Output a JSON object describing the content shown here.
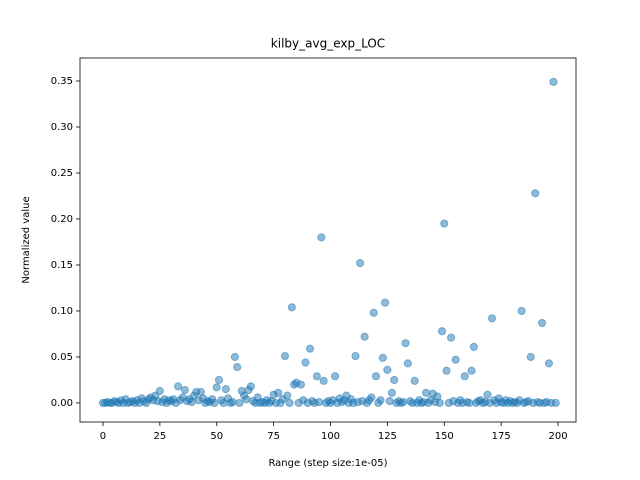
{
  "chart_data": {
    "type": "scatter",
    "title": "kilby_avg_exp_LOC",
    "xlabel": "Range (step size:1e-05)",
    "ylabel": "Normalized value",
    "color": "#1f77b4",
    "alpha": 0.5,
    "xlim": [
      -10.1,
      207.9
    ],
    "ylim": [
      -0.0207,
      0.375
    ],
    "xticks": [
      0,
      25,
      50,
      75,
      100,
      125,
      150,
      175,
      200
    ],
    "yticks": [
      {
        "value": 0,
        "label": "0.00"
      },
      0.05,
      {
        "value": 0.1,
        "label": "0.10"
      },
      0.15,
      {
        "value": 0.2,
        "label": "0.20"
      },
      0.25,
      {
        "value": 0.3,
        "label": "0.30"
      },
      0.35
    ],
    "x": [
      0,
      1,
      2,
      3,
      4,
      5,
      6,
      7,
      8,
      9,
      10,
      11,
      12,
      13,
      14,
      15,
      16,
      17,
      18,
      19,
      20,
      21,
      22,
      23,
      24,
      25,
      26,
      27,
      28,
      29,
      30,
      31,
      32,
      33,
      34,
      35,
      36,
      37,
      38,
      39,
      40,
      41,
      42,
      43,
      44,
      45,
      46,
      47,
      48,
      49,
      50,
      51,
      52,
      53,
      54,
      55,
      56,
      57,
      58,
      59,
      60,
      61,
      62,
      63,
      64,
      65,
      66,
      67,
      68,
      69,
      70,
      71,
      72,
      73,
      74,
      75,
      76,
      77,
      78,
      79,
      80,
      81,
      82,
      83,
      84,
      85,
      86,
      87,
      88,
      89,
      90,
      91,
      92,
      93,
      94,
      95,
      96,
      97,
      98,
      99,
      100,
      101,
      102,
      103,
      104,
      105,
      106,
      107,
      108,
      109,
      110,
      111,
      112,
      113,
      114,
      115,
      116,
      117,
      118,
      119,
      120,
      121,
      122,
      123,
      124,
      125,
      126,
      127,
      128,
      129,
      130,
      131,
      132,
      133,
      134,
      135,
      136,
      137,
      138,
      139,
      140,
      141,
      142,
      143,
      144,
      145,
      146,
      147,
      148,
      149,
      150,
      151,
      152,
      153,
      154,
      155,
      156,
      157,
      158,
      159,
      160,
      161,
      162,
      163,
      164,
      165,
      166,
      167,
      168,
      169,
      170,
      171,
      172,
      173,
      174,
      175,
      176,
      177,
      178,
      179,
      180,
      181,
      182,
      183,
      184,
      185,
      186,
      187,
      188,
      189,
      190,
      191,
      192,
      193,
      194,
      195,
      196,
      197,
      198,
      199
    ],
    "values": [
      0,
      0,
      0.001,
      0,
      0,
      0.002,
      0.001,
      0,
      0.003,
      0,
      0.004,
      0,
      0.001,
      0.002,
      0,
      0.003,
      0,
      0.005,
      0.002,
      0,
      0.004,
      0.006,
      0.003,
      0.008,
      0.002,
      0.013,
      0.001,
      0.004,
      0,
      0.003,
      0.002,
      0.004,
      0,
      0.018,
      0.003,
      0.006,
      0.014,
      0.002,
      0.004,
      0.001,
      0.008,
      0.012,
      0.003,
      0.012,
      0.005,
      0,
      0.002,
      0.001,
      0.004,
      0,
      0.017,
      0.025,
      0.003,
      0,
      0.015,
      0.005,
      0,
      0.001,
      0.05,
      0.039,
      0,
      0.013,
      0.008,
      0.004,
      0.014,
      0.018,
      0.002,
      0,
      0.006,
      0,
      0.001,
      0,
      0.003,
      0,
      0.002,
      0.009,
      0,
      0.011,
      0,
      0.004,
      0.051,
      0.008,
      0,
      0.104,
      0.02,
      0.022,
      0,
      0.02,
      0.003,
      0.044,
      0,
      0.059,
      0.002,
      0,
      0.029,
      0.001,
      0.18,
      0.024,
      0,
      0.002,
      0,
      0.003,
      0.029,
      0,
      0.005,
      0.001,
      0.003,
      0.008,
      0,
      0.004,
      0,
      0.051,
      0.001,
      0.152,
      0.002,
      0.072,
      0,
      0.003,
      0.006,
      0.098,
      0.029,
      0,
      0.003,
      0.049,
      0.109,
      0.036,
      0.002,
      0.011,
      0.025,
      0,
      0.002,
      0,
      0.001,
      0.065,
      0.043,
      0.002,
      0,
      0.024,
      0,
      0.003,
      0,
      0.001,
      0.011,
      0,
      0.003,
      0.01,
      0.001,
      0.007,
      0,
      0.078,
      0.195,
      0.035,
      0,
      0.071,
      0.002,
      0.047,
      0,
      0.003,
      0,
      0.029,
      0.001,
      0,
      0.035,
      0.061,
      0,
      0.002,
      0.003,
      0,
      0.001,
      0.009,
      0,
      0.092,
      0.003,
      0,
      0.005,
      0.001,
      0,
      0.003,
      0,
      0.002,
      0,
      0.001,
      0,
      0.003,
      0.1,
      0,
      0.001,
      0.002,
      0.05,
      0,
      0.228,
      0.001,
      0,
      0.087,
      0,
      0.001,
      0.043,
      0,
      0.349,
      0
    ]
  }
}
